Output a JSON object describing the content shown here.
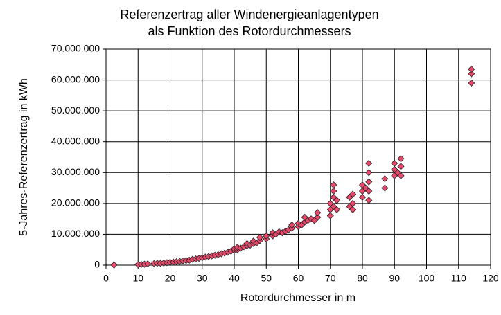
{
  "chart_data": {
    "type": "scatter",
    "title": [
      "Referenzertrag aller Windenergieanlagentypen",
      "als Funktion des Rotordurchmessers"
    ],
    "x_label": "Rotordurchmesser in m",
    "y_label": "5-Jahres-Referenzertrag in kWh",
    "xlim": [
      0,
      120
    ],
    "xticks": [
      0,
      10,
      20,
      30,
      40,
      50,
      60,
      70,
      80,
      90,
      100,
      110,
      120
    ],
    "ylim": [
      0,
      70000000
    ],
    "yticks": [
      0,
      {
        "value": 10000000,
        "label": "10.000.000"
      },
      {
        "value": 20000000,
        "label": "20.000.000"
      },
      {
        "value": 30000000,
        "label": "30.000.000"
      },
      {
        "value": 40000000,
        "label": "40.000.000"
      },
      {
        "value": 50000000,
        "label": "50.000.000"
      },
      {
        "value": 60000000,
        "label": "60.000.000"
      },
      {
        "value": 70000000,
        "label": "70.000.000"
      }
    ],
    "grid": true,
    "color": "#e8486a",
    "x": [
      2.5,
      10,
      11,
      12,
      13,
      15,
      16,
      17,
      18,
      19,
      20,
      21,
      22,
      23,
      24,
      25,
      26,
      27,
      28,
      29,
      30,
      31,
      32,
      33,
      34,
      35,
      36,
      37,
      38,
      39,
      40,
      40,
      41,
      41,
      42,
      43,
      44,
      44,
      45,
      46,
      46,
      47,
      48,
      48,
      50,
      50,
      52,
      52,
      53,
      54,
      55,
      56,
      57,
      58,
      58,
      60,
      60,
      61,
      62,
      62,
      63,
      64,
      65,
      66,
      66,
      70,
      70,
      70,
      71,
      71,
      71,
      71,
      72,
      72,
      76,
      76,
      77,
      77,
      77,
      80,
      80,
      80,
      81,
      82,
      82,
      82,
      82,
      82,
      87,
      87,
      90,
      90,
      90,
      91,
      92,
      92,
      92,
      114,
      114,
      114
    ],
    "values": [
      50000,
      200000,
      250000,
      300000,
      400000,
      500000,
      600000,
      600000,
      700000,
      800000,
      900000,
      1000000,
      1100000,
      1200000,
      1400000,
      1500000,
      1600000,
      1900000,
      2000000,
      2200000,
      2400000,
      2600000,
      2800000,
      3000000,
      3200000,
      3400000,
      3700000,
      3900000,
      4200000,
      4500000,
      4800000,
      5300000,
      5000000,
      5800000,
      5500000,
      6000000,
      6300000,
      7000000,
      6500000,
      7000000,
      7800000,
      7200000,
      8000000,
      9000000,
      8500000,
      9500000,
      9500000,
      10500000,
      10000000,
      10800000,
      10500000,
      11000000,
      11500000,
      12000000,
      13000000,
      12500000,
      13500000,
      13000000,
      14000000,
      15500000,
      14500000,
      15000000,
      14500000,
      15500000,
      17000000,
      16000000,
      18000000,
      20000000,
      22000000,
      24000000,
      26000000,
      19000000,
      18000000,
      21000000,
      19000000,
      22000000,
      18000000,
      20000000,
      23000000,
      22000000,
      24000000,
      26000000,
      25000000,
      21000000,
      24000000,
      27000000,
      30000000,
      33000000,
      25000000,
      28000000,
      29000000,
      31000000,
      33000000,
      30000000,
      29000000,
      32000000,
      34500000,
      59000000,
      62000000,
      63500000
    ]
  }
}
